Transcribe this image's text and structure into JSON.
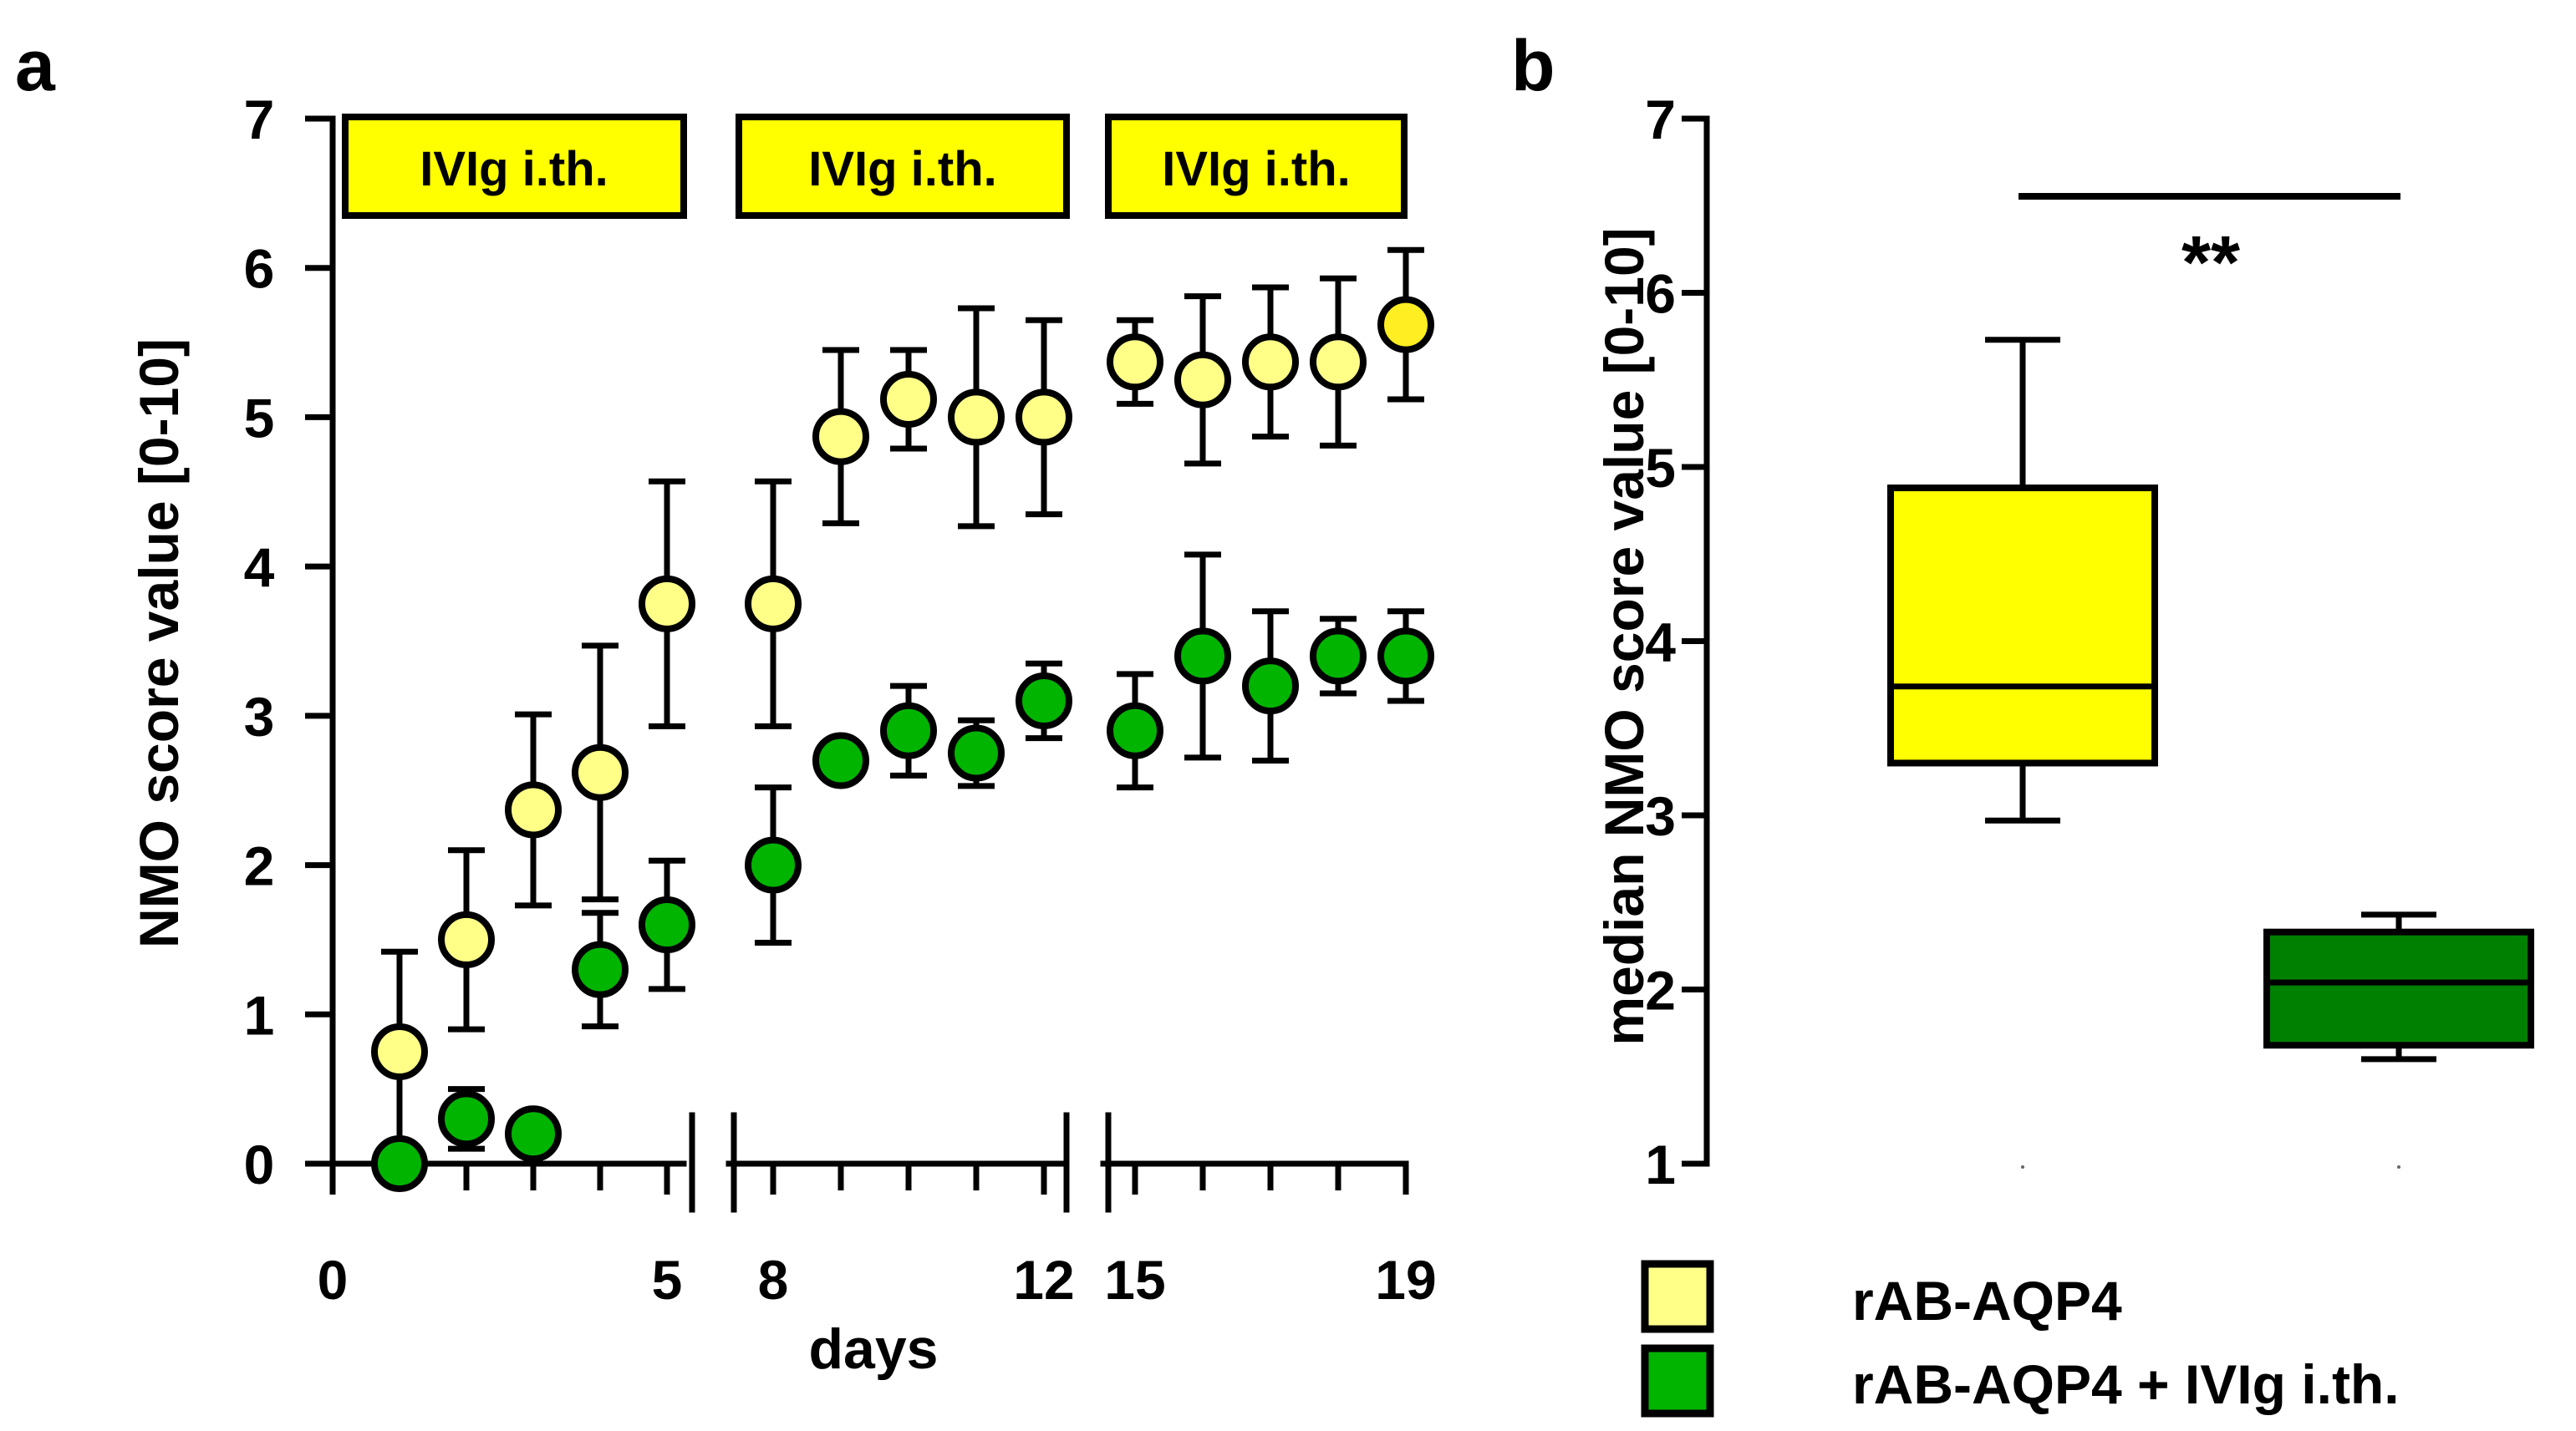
{
  "chart_data": [
    {
      "panel": "a",
      "type": "scatter",
      "xlabel": "days",
      "ylabel": "NMO score value [0-10]",
      "ylim": [
        0,
        7
      ],
      "yticks": [
        0,
        1,
        2,
        3,
        4,
        5,
        6,
        7
      ],
      "xticks": [
        0,
        5,
        8,
        12,
        15,
        19
      ],
      "axis_breaks": [
        6,
        13.5
      ],
      "treatment_banners": [
        "IVIg i.th.",
        "IVIg i.th.",
        "IVIg i.th."
      ],
      "series": [
        {
          "name": "rAB-AQP4",
          "color": "#ffff88",
          "x": [
            1,
            2,
            3,
            4,
            5,
            8,
            9,
            10,
            11,
            12,
            15,
            16,
            17,
            18,
            19
          ],
          "y": [
            0.75,
            1.5,
            2.37,
            2.62,
            3.75,
            3.75,
            4.87,
            5.12,
            5.0,
            5.0,
            5.37,
            5.25,
            5.37,
            5.37,
            5.62
          ],
          "err": [
            0.67,
            0.6,
            0.64,
            0.85,
            0.82,
            0.82,
            0.58,
            0.33,
            0.73,
            0.65,
            0.28,
            0.56,
            0.5,
            0.56,
            0.5
          ]
        },
        {
          "name": "rAB-AQP4 + IVIg i.th.",
          "color": "#00b400",
          "x": [
            1,
            2,
            3,
            4,
            5,
            8,
            9,
            10,
            11,
            12,
            15,
            16,
            17,
            18,
            19
          ],
          "y": [
            0,
            0.3,
            0.2,
            1.3,
            1.6,
            2.0,
            2.7,
            2.9,
            2.75,
            3.1,
            2.9,
            3.4,
            3.2,
            3.4,
            3.4
          ],
          "err": [
            0,
            0.2,
            0,
            0.38,
            0.43,
            0.52,
            0,
            0.3,
            0.22,
            0.25,
            0.38,
            0.68,
            0.5,
            0.25,
            0.3
          ]
        }
      ]
    },
    {
      "panel": "b",
      "type": "box",
      "ylabel": "median NMO score value [0-10]",
      "ylim": [
        1,
        7
      ],
      "yticks": [
        1,
        2,
        3,
        4,
        5,
        6,
        7
      ],
      "significance": "**",
      "boxes": [
        {
          "name": "rAB-AQP4",
          "color": "#ffff00",
          "min": 2.97,
          "q1": 3.3,
          "median": 3.74,
          "q3": 4.88,
          "max": 5.73
        },
        {
          "name": "rAB-AQP4 + IVIg i.th.",
          "color": "#008000",
          "min": 1.6,
          "q1": 1.68,
          "median": 2.04,
          "q3": 2.33,
          "max": 2.43
        }
      ]
    }
  ],
  "legend": {
    "position": "bottom-right",
    "items": [
      {
        "label": "rAB-AQP4",
        "color": "#ffff88"
      },
      {
        "label": "rAB-AQP4 + IVIg i.th.",
        "color": "#00b400"
      }
    ]
  }
}
